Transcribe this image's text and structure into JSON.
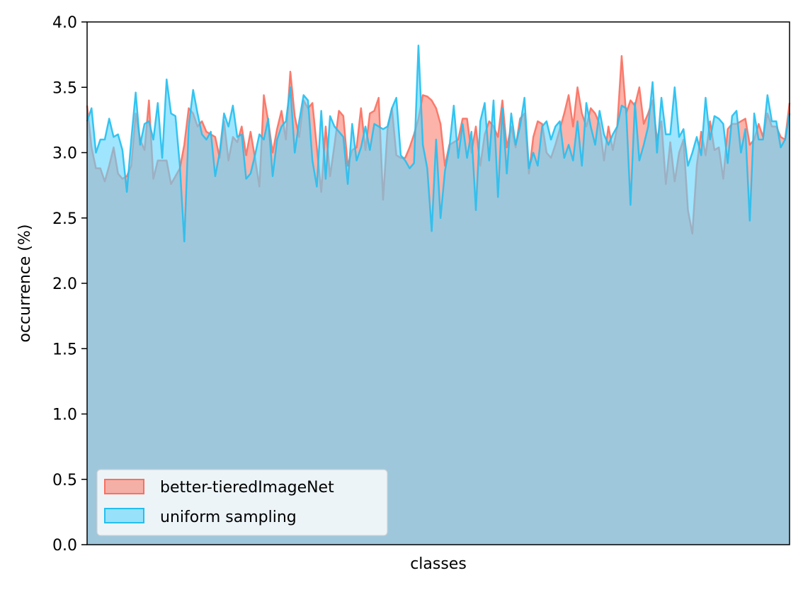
{
  "chart_data": {
    "type": "area",
    "title": "",
    "xlabel": "classes",
    "ylabel": "occurrence (%)",
    "ylim": [
      0,
      4.0
    ],
    "yticks": [
      "0.0",
      "0.5",
      "1.0",
      "1.5",
      "2.0",
      "2.5",
      "3.0",
      "3.5",
      "4.0"
    ],
    "xticks": [],
    "grid": false,
    "legend_position": "lower-left",
    "n_classes": 160,
    "series": [
      {
        "name": "better-tieredImageNet",
        "fill_color": "#fa8072",
        "line_color": "#fa7060",
        "values": [
          3.36,
          3.04,
          2.88,
          2.88,
          2.78,
          2.9,
          3.04,
          2.84,
          2.8,
          2.82,
          2.9,
          3.3,
          3.1,
          3.02,
          3.4,
          2.8,
          2.94,
          2.94,
          2.94,
          2.76,
          2.82,
          2.88,
          3.06,
          3.34,
          3.3,
          3.2,
          3.24,
          3.16,
          3.14,
          3.12,
          2.96,
          3.24,
          2.94,
          3.12,
          3.08,
          3.2,
          2.98,
          3.16,
          2.96,
          2.74,
          3.44,
          3.24,
          3.0,
          3.18,
          3.32,
          3.1,
          3.62,
          3.28,
          3.12,
          3.4,
          3.34,
          3.38,
          3.04,
          2.7,
          3.2,
          2.82,
          3.06,
          3.32,
          3.28,
          2.9,
          3.02,
          3.04,
          3.34,
          3.02,
          3.3,
          3.32,
          3.42,
          2.64,
          3.18,
          3.34,
          2.98,
          2.96,
          2.96,
          3.04,
          3.14,
          3.26,
          3.44,
          3.43,
          3.4,
          3.34,
          3.22,
          2.9,
          3.06,
          3.08,
          3.1,
          3.26,
          3.26,
          3.0,
          3.2,
          2.9,
          3.14,
          3.24,
          3.2,
          3.12,
          3.4,
          3.04,
          3.2,
          3.04,
          3.26,
          3.3,
          2.84,
          3.12,
          3.24,
          3.22,
          3.0,
          2.96,
          3.06,
          3.18,
          3.3,
          3.44,
          3.2,
          3.5,
          3.3,
          3.2,
          3.34,
          3.3,
          3.22,
          2.94,
          3.2,
          3.02,
          3.2,
          3.74,
          3.3,
          3.4,
          3.36,
          3.5,
          3.22,
          3.3,
          3.4,
          3.1,
          3.24,
          2.76,
          3.08,
          2.78,
          3.0,
          3.1,
          2.56,
          2.38,
          2.9,
          3.16,
          2.98,
          3.24,
          3.02,
          3.04,
          2.8,
          3.18,
          3.22,
          3.22,
          3.24,
          3.26,
          3.06,
          3.1,
          3.22,
          3.12,
          3.3,
          3.2,
          3.2,
          3.12,
          3.1,
          3.38
        ]
      },
      {
        "name": "uniform sampling",
        "fill_color": "#5fd3fb",
        "line_color": "#23bff0",
        "values": [
          3.24,
          3.34,
          3.0,
          3.1,
          3.1,
          3.26,
          3.12,
          3.14,
          3.02,
          2.7,
          3.1,
          3.46,
          3.06,
          3.22,
          3.24,
          3.1,
          3.38,
          2.96,
          3.56,
          3.3,
          3.28,
          2.9,
          2.32,
          3.2,
          3.48,
          3.3,
          3.14,
          3.1,
          3.16,
          2.82,
          3.0,
          3.3,
          3.2,
          3.36,
          3.12,
          3.14,
          2.8,
          2.84,
          2.98,
          3.14,
          3.1,
          3.26,
          2.82,
          3.1,
          3.2,
          3.24,
          3.5,
          3.0,
          3.24,
          3.44,
          3.4,
          2.94,
          2.74,
          3.32,
          2.8,
          3.28,
          3.2,
          3.16,
          3.12,
          2.76,
          3.22,
          2.94,
          3.04,
          3.2,
          3.02,
          3.22,
          3.2,
          3.18,
          3.2,
          3.34,
          3.42,
          2.98,
          2.94,
          2.88,
          2.92,
          3.82,
          3.06,
          2.88,
          2.4,
          3.1,
          2.5,
          2.86,
          3.04,
          3.36,
          2.96,
          3.22,
          2.96,
          3.16,
          2.56,
          3.24,
          3.38,
          2.94,
          3.4,
          2.66,
          3.34,
          2.84,
          3.3,
          3.06,
          3.2,
          3.42,
          2.88,
          3.0,
          2.9,
          3.2,
          3.24,
          3.1,
          3.2,
          3.24,
          2.96,
          3.06,
          2.94,
          3.24,
          2.9,
          3.38,
          3.2,
          3.06,
          3.32,
          3.14,
          3.06,
          3.14,
          3.2,
          3.36,
          3.34,
          2.6,
          3.38,
          2.94,
          3.06,
          3.2,
          3.54,
          3.0,
          3.42,
          3.14,
          3.14,
          3.5,
          3.12,
          3.18,
          2.9,
          3.0,
          3.12,
          2.98,
          3.42,
          3.1,
          3.28,
          3.26,
          3.22,
          2.92,
          3.28,
          3.32,
          3.0,
          3.18,
          2.48,
          3.3,
          3.1,
          3.1,
          3.44,
          3.24,
          3.24,
          3.04,
          3.1,
          3.3
        ]
      }
    ]
  }
}
